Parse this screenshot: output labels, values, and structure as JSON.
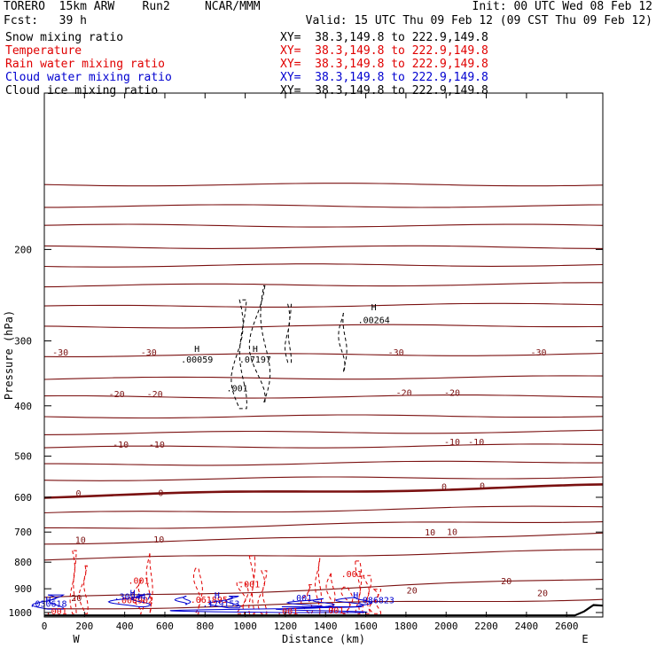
{
  "header": {
    "model": "TORERO  15km ARW    Run2     NCAR/MMM",
    "init": "Init: 00 UTC Wed 08 Feb 12",
    "fcst": "Fcst:   39 h",
    "valid": "Valid: 15 UTC Thu 09 Feb 12 (09 CST Thu 09 Feb 12)"
  },
  "legend": [
    {
      "label": "Snow mixing ratio",
      "color": "#000000",
      "xy": "XY=  38.3,149.8 to 222.9,149.8"
    },
    {
      "label": "Temperature",
      "color": "#e00000",
      "xy": "XY=  38.3,149.8 to 222.9,149.8"
    },
    {
      "label": "Rain water mixing ratio",
      "color": "#e00000",
      "xy": "XY=  38.3,149.8 to 222.9,149.8"
    },
    {
      "label": "Cloud water mixing ratio",
      "color": "#0000d0",
      "xy": "XY=  38.3,149.8 to 222.9,149.8"
    },
    {
      "label": "Cloud ice mixing ratio",
      "color": "#000000",
      "xy": "XY=  38.3,149.8 to 222.9,149.8"
    }
  ],
  "chart_data": {
    "type": "cross-section contour",
    "xlabel": "Distance (km)",
    "ylabel": "Pressure (hPa)",
    "xlim": [
      0,
      2780
    ],
    "ylim": [
      1020,
      100
    ],
    "y_scale": "log",
    "x_ticks": [
      0,
      200,
      400,
      600,
      800,
      1000,
      1200,
      1400,
      1600,
      1800,
      2000,
      2200,
      2400,
      2600
    ],
    "y_ticks": [
      200,
      300,
      400,
      500,
      600,
      700,
      800,
      900,
      1000
    ],
    "x_end_labels": {
      "left": "W",
      "right": "E"
    },
    "temperature_isotherms": [
      {
        "pressure": [
          150,
          150
        ],
        "x": [
          0,
          2780
        ]
      },
      {
        "pressure": [
          165,
          165
        ],
        "x": [
          0,
          2780
        ]
      },
      {
        "pressure": [
          180,
          180
        ],
        "x": [
          0,
          2780
        ]
      },
      {
        "pressure": [
          198,
          198
        ],
        "x": [
          0,
          2780
        ]
      },
      {
        "pressure": [
          215,
          214
        ],
        "x": [
          0,
          2780
        ]
      },
      {
        "pressure": [
          235,
          233
        ],
        "x": [
          0,
          2780
        ]
      },
      {
        "pressure": [
          258,
          255
        ],
        "x": [
          0,
          2780
        ]
      },
      {
        "pressure": [
          282,
          280
        ],
        "x": [
          0,
          2780
        ]
      },
      {
        "pressure": [
          320,
          318
        ],
        "x": [
          0,
          2780
        ],
        "value": -30
      },
      {
        "pressure": [
          355,
          352
        ],
        "x": [
          0,
          2780
        ]
      },
      {
        "pressure": [
          385,
          383
        ],
        "x": [
          0,
          2780
        ],
        "value": -20
      },
      {
        "pressure": [
          420,
          418
        ],
        "x": [
          0,
          2780
        ]
      },
      {
        "pressure": [
          452,
          448
        ],
        "x": [
          0,
          2780
        ]
      },
      {
        "pressure": [
          482,
          476
        ],
        "x": [
          0,
          2780
        ],
        "value": -10
      },
      {
        "pressure": [
          520,
          512
        ],
        "x": [
          0,
          2780
        ]
      },
      {
        "pressure": [
          555,
          548
        ],
        "x": [
          0,
          2780
        ]
      },
      {
        "pressure": [
          598,
          570
        ],
        "x": [
          0,
          2780
        ],
        "value": 0,
        "bold": true
      },
      {
        "pressure": [
          645,
          625
        ],
        "x": [
          0,
          2780
        ]
      },
      {
        "pressure": [
          690,
          665
        ],
        "x": [
          0,
          2780
        ]
      },
      {
        "pressure": [
          735,
          705
        ],
        "x": [
          0,
          2780
        ],
        "value": 10
      },
      {
        "pressure": [
          790,
          760
        ],
        "x": [
          0,
          2780
        ]
      },
      {
        "pressure": [
          940,
          860
        ],
        "x": [
          0,
          2780
        ],
        "value": 20
      },
      {
        "pressure": [
          985,
          940
        ],
        "x": [
          0,
          2780
        ]
      }
    ],
    "temperature_labels": [
      {
        "x": 80,
        "p": 320,
        "text": "-30"
      },
      {
        "x": 520,
        "p": 320,
        "text": "-30"
      },
      {
        "x": 1750,
        "p": 320,
        "text": "-30"
      },
      {
        "x": 2460,
        "p": 320,
        "text": "-30"
      },
      {
        "x": 360,
        "p": 385,
        "text": "-20"
      },
      {
        "x": 550,
        "p": 385,
        "text": "-20"
      },
      {
        "x": 1790,
        "p": 383,
        "text": "-20"
      },
      {
        "x": 2030,
        "p": 383,
        "text": "-20"
      },
      {
        "x": 380,
        "p": 482,
        "text": "-10"
      },
      {
        "x": 560,
        "p": 482,
        "text": "-10"
      },
      {
        "x": 2030,
        "p": 476,
        "text": "-10"
      },
      {
        "x": 2150,
        "p": 476,
        "text": "-10"
      },
      {
        "x": 170,
        "p": 598,
        "text": "0"
      },
      {
        "x": 580,
        "p": 596,
        "text": "0"
      },
      {
        "x": 1990,
        "p": 580,
        "text": "0"
      },
      {
        "x": 2180,
        "p": 578,
        "text": "0"
      },
      {
        "x": 180,
        "p": 735,
        "text": "10"
      },
      {
        "x": 570,
        "p": 733,
        "text": "10"
      },
      {
        "x": 1920,
        "p": 710,
        "text": "10"
      },
      {
        "x": 2030,
        "p": 709,
        "text": "10"
      },
      {
        "x": 1830,
        "p": 920,
        "text": "20"
      },
      {
        "x": 2300,
        "p": 882,
        "text": "20"
      },
      {
        "x": 2480,
        "p": 930,
        "text": "20"
      },
      {
        "x": 160,
        "p": 950,
        "text": "20"
      }
    ],
    "snow_ice_labels": [
      {
        "x": 760,
        "p": 315,
        "text": "H"
      },
      {
        "x": 760,
        "p": 330,
        "text": ".00059"
      },
      {
        "x": 1050,
        "p": 315,
        "text": "H"
      },
      {
        "x": 1050,
        "p": 330,
        "text": ".07197"
      },
      {
        "x": 960,
        "p": 375,
        "text": ".001"
      },
      {
        "x": 1640,
        "p": 262,
        "text": "H"
      },
      {
        "x": 1640,
        "p": 277,
        "text": ".00264"
      }
    ],
    "rain_labels": [
      {
        "x": 470,
        "p": 880,
        "text": ".001"
      },
      {
        "x": 1020,
        "p": 895,
        "text": ".001"
      },
      {
        "x": 1530,
        "p": 855,
        "text": ".001"
      },
      {
        "x": 1210,
        "p": 1008,
        "text": ".001"
      },
      {
        "x": 1440,
        "p": 1005,
        "text": ".001"
      },
      {
        "x": 450,
        "p": 960,
        "text": ".008902"
      },
      {
        "x": 820,
        "p": 958,
        "text": ".061895"
      },
      {
        "x": 60,
        "p": 1008,
        "text": ".001"
      }
    ],
    "cloud_water_labels": [
      {
        "x": 20,
        "p": 975,
        "text": ".030618"
      },
      {
        "x": 440,
        "p": 945,
        "text": ".309447"
      },
      {
        "x": 880,
        "p": 975,
        "text": ".179153"
      },
      {
        "x": 1280,
        "p": 950,
        "text": ".001"
      },
      {
        "x": 1650,
        "p": 960,
        "text": ".086823"
      }
    ],
    "cloud_water_highs": [
      {
        "x": 20,
        "p": 958
      },
      {
        "x": 440,
        "p": 930
      },
      {
        "x": 860,
        "p": 940
      },
      {
        "x": 1550,
        "p": 940
      }
    ]
  }
}
